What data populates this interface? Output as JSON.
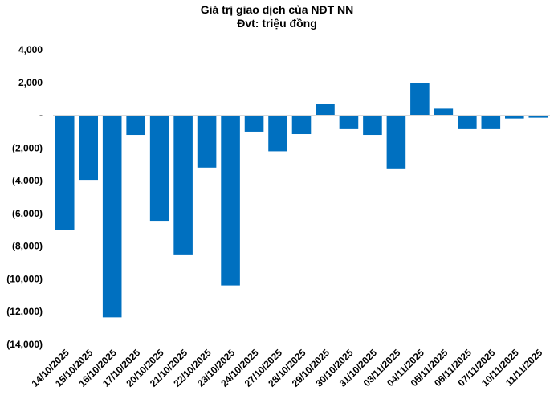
{
  "chart_data": {
    "type": "bar",
    "title": "Giá trị giao dịch của NĐT NN",
    "subtitle": "Đvt: triệu đồng",
    "xlabel": "",
    "ylabel": "",
    "ylim": [
      -14000,
      4000
    ],
    "yticks": [
      4000,
      2000,
      0,
      -2000,
      -4000,
      -6000,
      -8000,
      -10000,
      -12000,
      -14000
    ],
    "ytick_labels": [
      "4,000",
      "2,000",
      "-",
      "(2,000)",
      "(4,000)",
      "(6,000)",
      "(8,000)",
      "(10,000)",
      "(12,000)",
      "(14,000)"
    ],
    "categories": [
      "14/10/2025",
      "15/10/2025",
      "16/10/2025",
      "17/10/2025",
      "20/10/2025",
      "21/10/2025",
      "22/10/2025",
      "23/10/2025",
      "24/10/2025",
      "27/10/2025",
      "28/10/2025",
      "29/10/2025",
      "30/10/2025",
      "31/10/2025",
      "03/11/2025",
      "04/11/2025",
      "05/11/2025",
      "06/11/2025",
      "07/11/2025",
      "10/11/2025",
      "11/11/2025"
    ],
    "values": [
      -7000,
      -3950,
      -12350,
      -1200,
      -6450,
      -8550,
      -3200,
      -10400,
      -1000,
      -2200,
      -1150,
      700,
      -850,
      -1200,
      -3250,
      1950,
      400,
      -850,
      -850,
      -200,
      -150
    ],
    "bar_color": "#0070c0",
    "grid": false,
    "legend": "none"
  }
}
